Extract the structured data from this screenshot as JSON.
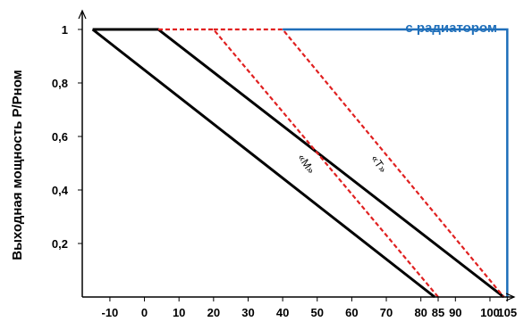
{
  "chart_data": {
    "type": "line",
    "ylabel": "Выходная мощность Р/Рном",
    "x_ticks": [
      "-10",
      "0",
      "10",
      "20",
      "30",
      "40",
      "50",
      "60",
      "70",
      "80",
      "85",
      "90",
      "100",
      "105"
    ],
    "x_tick_values": [
      -10,
      0,
      10,
      20,
      30,
      40,
      50,
      60,
      70,
      80,
      85,
      90,
      100,
      105
    ],
    "y_ticks": [
      "0,2",
      "0,4",
      "0,6",
      "0,8",
      "1"
    ],
    "y_tick_values": [
      0.2,
      0.4,
      0.6,
      0.8,
      1.0
    ],
    "xlim": [
      -18,
      107
    ],
    "ylim": [
      0,
      1.07
    ],
    "grid": false,
    "series": [
      {
        "key": "heatsink",
        "name": "с радиатором",
        "color": "#1f6fba",
        "dash": "solid",
        "points": [
          [
            40,
            1.0
          ],
          [
            105,
            1.0
          ],
          [
            105,
            0.0
          ]
        ]
      },
      {
        "key": "m_solid",
        "color": "#000000",
        "dash": "solid",
        "points": [
          [
            -15,
            1.0
          ],
          [
            84,
            0.0
          ]
        ]
      },
      {
        "key": "t_solid",
        "color": "#000000",
        "dash": "solid",
        "points": [
          [
            -15,
            1.0
          ],
          [
            4,
            1.0
          ],
          [
            104,
            0.0
          ]
        ]
      },
      {
        "key": "m_dashed",
        "color": "#e02020",
        "dash": "dashed",
        "points": [
          [
            4,
            1.0
          ],
          [
            20,
            1.0
          ],
          [
            85,
            0.0
          ]
        ]
      },
      {
        "key": "t_dashed",
        "color": "#e02020",
        "dash": "dashed",
        "points": [
          [
            20,
            1.0
          ],
          [
            40,
            1.0
          ],
          [
            104,
            0.0
          ]
        ]
      }
    ],
    "annotations": [
      {
        "key": "m",
        "text": "«M»",
        "x": 46,
        "y": 0.49,
        "rotation": 56
      },
      {
        "key": "t",
        "text": "«T»",
        "x": 67,
        "y": 0.49,
        "rotation": 56
      }
    ]
  }
}
